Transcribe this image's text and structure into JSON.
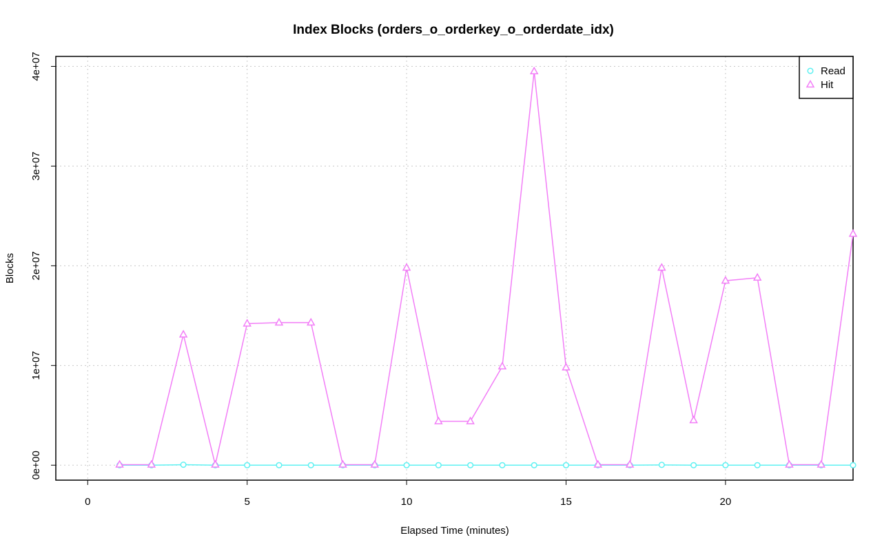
{
  "chart_data": {
    "type": "line",
    "title": "Index Blocks (orders_o_orderkey_o_orderdate_idx)",
    "xlabel": "Elapsed Time (minutes)",
    "ylabel": "Blocks",
    "xlim": [
      -1,
      24
    ],
    "ylim": [
      -1500000,
      41000000
    ],
    "x_ticks": [
      0,
      5,
      10,
      15,
      20
    ],
    "x_tick_labels": [
      "0",
      "5",
      "10",
      "15",
      "20"
    ],
    "y_ticks": [
      0,
      10000000,
      20000000,
      30000000,
      40000000
    ],
    "y_tick_labels": [
      "0e+00",
      "1e+07",
      "2e+07",
      "3e+07",
      "4e+07"
    ],
    "grid": true,
    "legend_position": "top-right",
    "x": [
      1,
      2,
      3,
      4,
      5,
      6,
      7,
      8,
      9,
      10,
      11,
      12,
      13,
      14,
      15,
      16,
      17,
      18,
      19,
      20,
      21,
      22,
      23,
      24
    ],
    "series": [
      {
        "name": "Read",
        "color": "#5EF1F2",
        "marker": "circle",
        "values": [
          0,
          0,
          50000,
          0,
          0,
          0,
          0,
          0,
          0,
          0,
          0,
          0,
          0,
          0,
          0,
          0,
          0,
          30000,
          0,
          0,
          0,
          0,
          0,
          0
        ]
      },
      {
        "name": "Hit",
        "color": "#F27DF7",
        "marker": "triangle",
        "values": [
          50000,
          50000,
          13100000,
          50000,
          14200000,
          14300000,
          14300000,
          50000,
          50000,
          19800000,
          4400000,
          4400000,
          9900000,
          39500000,
          9800000,
          50000,
          50000,
          19800000,
          4500000,
          18500000,
          18800000,
          50000,
          50000,
          23200000
        ]
      }
    ]
  }
}
